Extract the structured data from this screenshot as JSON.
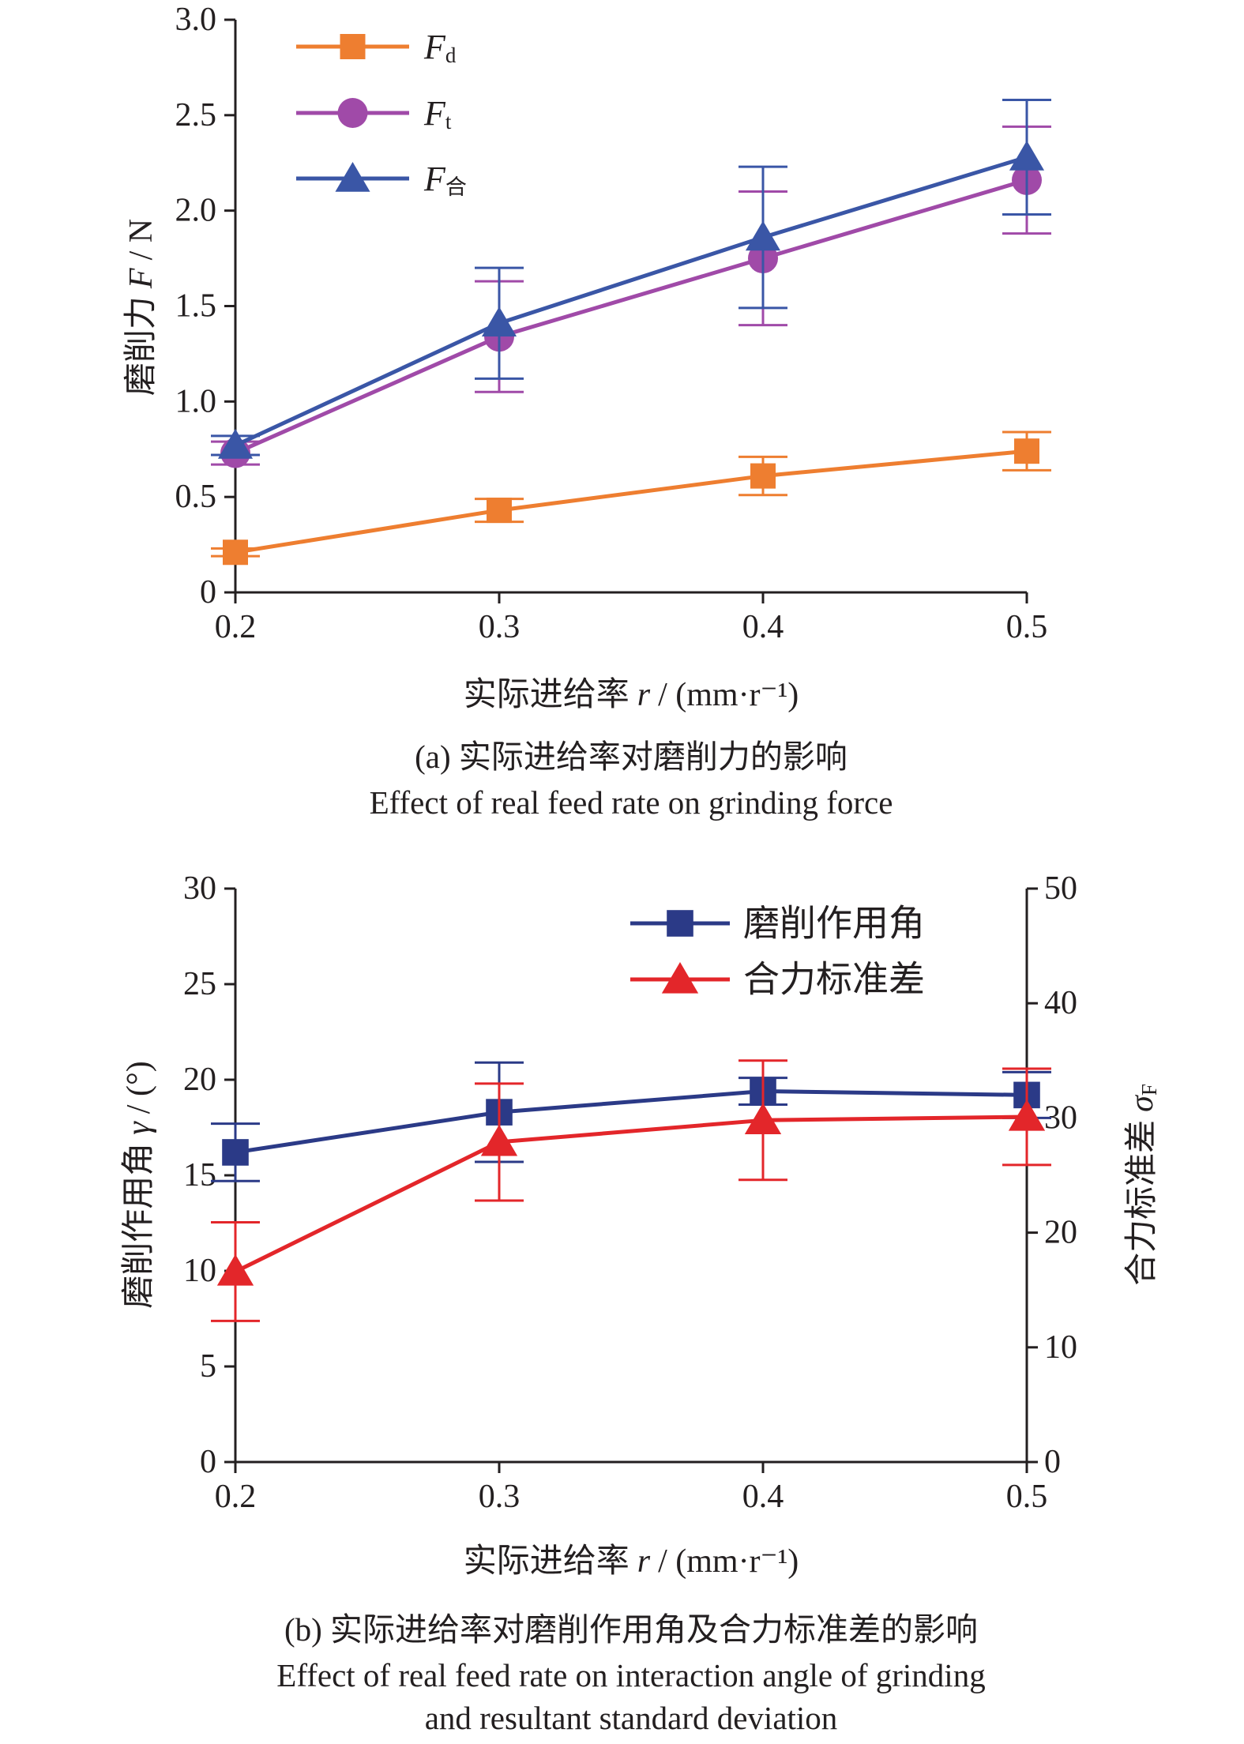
{
  "chart_data": [
    {
      "type": "line",
      "caption": "(a) 实际进给率对磨削力的影响",
      "caption_en": [
        "Effect of real feed rate on grinding force"
      ],
      "xlabel": {
        "text": "实际进给率",
        "symbol": "r",
        "unit": "/ (mm·r⁻¹)"
      },
      "ylabel": {
        "text": "磨削力",
        "symbol": "F",
        "unit": "/ N"
      },
      "x": [
        0.2,
        0.3,
        0.4,
        0.5
      ],
      "xlim": [
        0.2,
        0.5
      ],
      "xtick_labels": [
        "0.2",
        "0.3",
        "0.4",
        "0.5"
      ],
      "ylim": [
        0,
        3.0
      ],
      "ytick_labels": [
        "0",
        "0.5",
        "1.0",
        "1.5",
        "2.0",
        "2.5",
        "3.0"
      ],
      "grid": false,
      "legend": "top-left",
      "series": [
        {
          "label": {
            "symbol": "F",
            "sub": "d"
          },
          "marker": "square",
          "color": "#EE7E30",
          "values": [
            0.21,
            0.43,
            0.61,
            0.74
          ],
          "error": [
            0.02,
            0.06,
            0.1,
            0.1
          ]
        },
        {
          "label": {
            "symbol": "F",
            "sub": "t"
          },
          "marker": "circle",
          "color": "#A04AA8",
          "values": [
            0.73,
            1.34,
            1.75,
            2.16
          ],
          "error": [
            0.06,
            0.29,
            0.35,
            0.28
          ]
        },
        {
          "label": {
            "symbol": "F",
            "sub": "合"
          },
          "marker": "triangle",
          "color": "#3A56A6",
          "values": [
            0.77,
            1.41,
            1.86,
            2.28
          ],
          "error": [
            0.05,
            0.29,
            0.37,
            0.3
          ]
        }
      ]
    },
    {
      "type": "line",
      "caption": "(b) 实际进给率对磨削作用角及合力标准差的影响",
      "caption_en": [
        "Effect of real feed rate on interaction angle of grinding",
        "and resultant standard deviation"
      ],
      "xlabel": {
        "text": "实际进给率",
        "symbol": "r",
        "unit": "/ (mm·r⁻¹)"
      },
      "ylabel": {
        "text": "磨削作用角",
        "symbol": "γ",
        "unit": "/ (°)"
      },
      "y2label": {
        "text": "合力标准差",
        "symbol": "σ",
        "sub": "F"
      },
      "x": [
        0.2,
        0.3,
        0.4,
        0.5
      ],
      "xlim": [
        0.2,
        0.5
      ],
      "xtick_labels": [
        "0.2",
        "0.3",
        "0.4",
        "0.5"
      ],
      "ylim": [
        0,
        30
      ],
      "ytick_labels": [
        "0",
        "5",
        "10",
        "15",
        "20",
        "25",
        "30"
      ],
      "y2lim": [
        0,
        50
      ],
      "y2tick_labels": [
        "0",
        "10",
        "20",
        "30",
        "40",
        "50"
      ],
      "grid": false,
      "legend": "top-right",
      "series": [
        {
          "name": "磨削作用角",
          "axis": "left",
          "marker": "square",
          "color": "#2B3A87",
          "values": [
            16.2,
            18.3,
            19.4,
            19.2
          ],
          "error": [
            1.5,
            2.6,
            0.7,
            1.2
          ]
        },
        {
          "name": "合力标准差",
          "axis": "right",
          "marker": "triangle",
          "color": "#E3262A",
          "values": [
            16.6,
            27.9,
            29.8,
            30.1
          ],
          "error": [
            4.3,
            5.1,
            5.2,
            4.2
          ]
        }
      ]
    }
  ]
}
